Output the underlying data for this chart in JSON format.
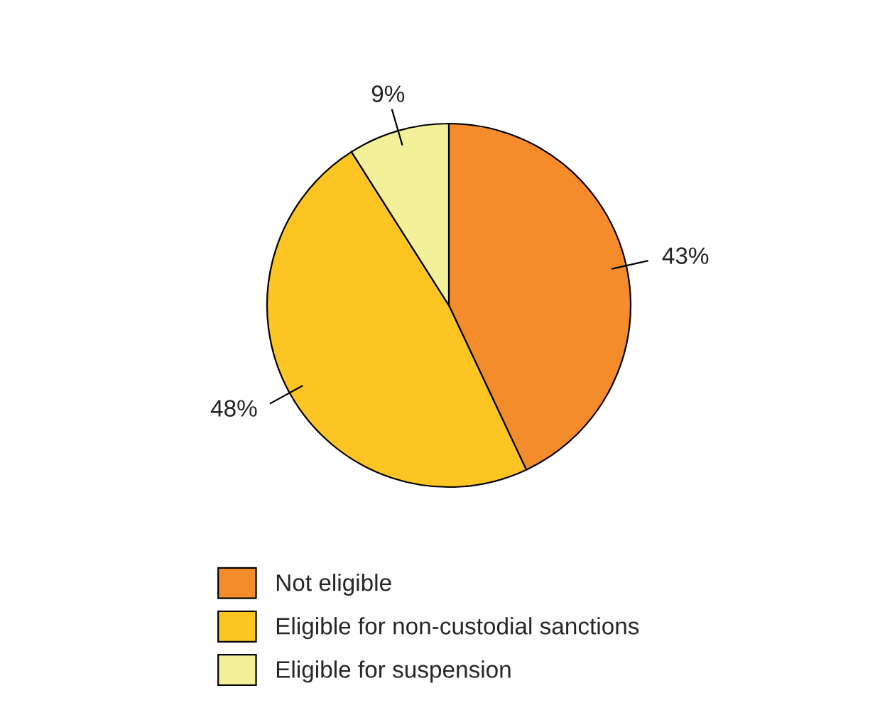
{
  "chart_data": {
    "type": "pie",
    "categories": [
      "Not eligible",
      "Eligible for non-custodial sanctions",
      "Eligible for suspension"
    ],
    "values": [
      43,
      48,
      9
    ],
    "colors": [
      "#f58c2c",
      "#fcc523",
      "#f3f09a"
    ],
    "value_labels": [
      "43%",
      "48%",
      "9%"
    ],
    "legend": "bottom"
  }
}
